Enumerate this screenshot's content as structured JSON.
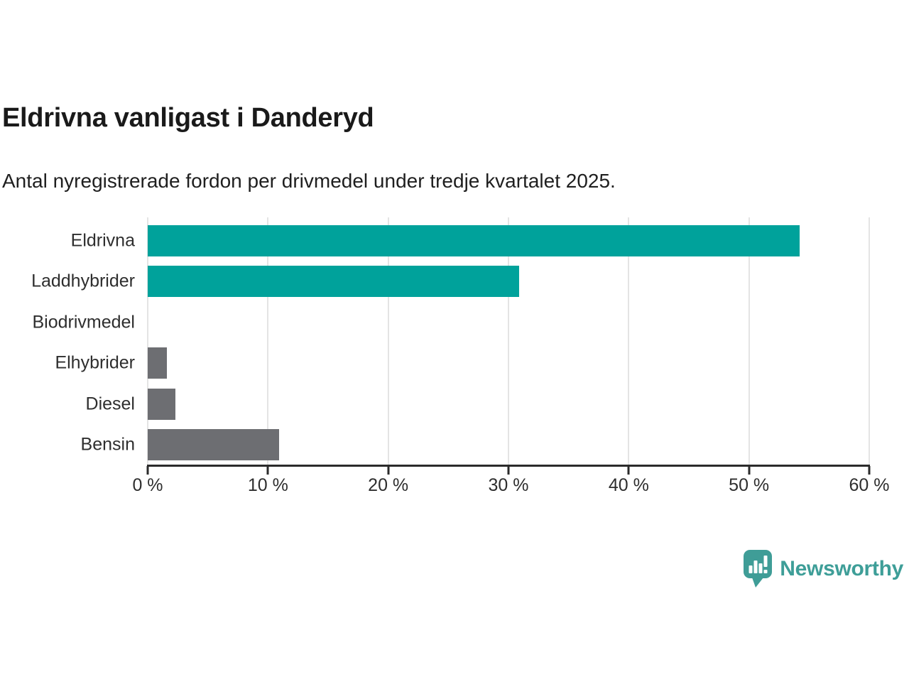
{
  "header": {
    "title": "Eldrivna vanligast i Danderyd",
    "subtitle": "Antal nyregistrerade fordon per drivmedel under tredje kvartalet 2025."
  },
  "chart_data": {
    "type": "bar",
    "orientation": "horizontal",
    "title": "Eldrivna vanligast i Danderyd",
    "subtitle": "Antal nyregistrerade fordon per drivmedel under tredje kvartalet 2025.",
    "categories": [
      "Eldrivna",
      "Laddhybrider",
      "Biodrivmedel",
      "Elhybrider",
      "Diesel",
      "Bensin"
    ],
    "values": [
      54.2,
      30.9,
      0,
      1.6,
      2.3,
      10.9
    ],
    "unit": "%",
    "xlim": [
      0,
      60
    ],
    "x_ticks": [
      0,
      10,
      20,
      30,
      40,
      50,
      60
    ],
    "x_tick_labels": [
      "0 %",
      "10 %",
      "20 %",
      "30 %",
      "40 %",
      "50 %",
      "60 %"
    ],
    "bar_colors": [
      "#00a29b",
      "#00a29b",
      "#6d6e72",
      "#6d6e72",
      "#6d6e72",
      "#6d6e72"
    ],
    "grid": true,
    "legend": null
  },
  "branding": {
    "logo_text": "Newsworthy",
    "logo_icon": "newsworthy-speech-bubble-chart-icon",
    "logo_color": "#3e9e98"
  },
  "colors": {
    "accent_teal": "#00a29b",
    "bar_gray": "#6d6e72",
    "axis": "#2b2b2b",
    "gridline": "#e4e4e4",
    "text_dark": "#1a1a1a"
  }
}
